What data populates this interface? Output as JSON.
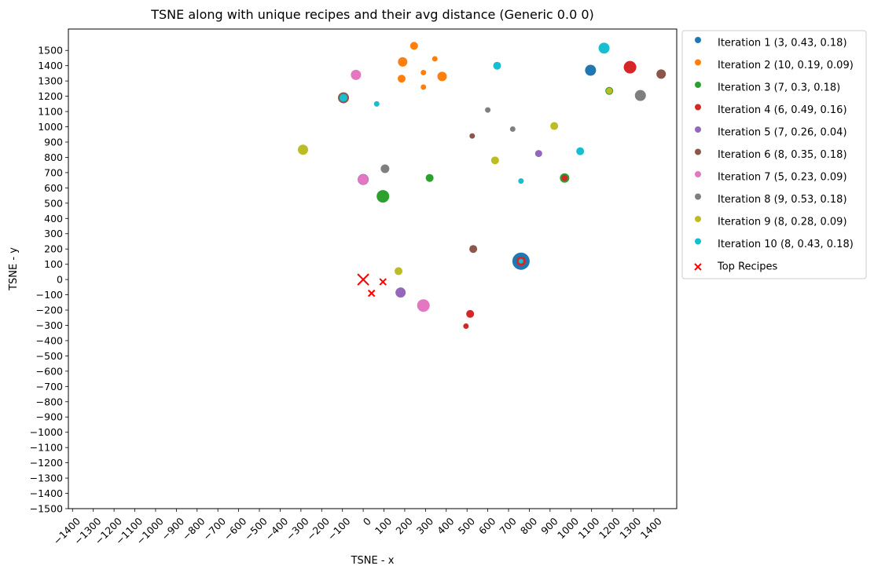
{
  "chart_data": {
    "type": "scatter",
    "title": "TSNE along with unique recipes and their avg distance (Generic 0.0 0)",
    "xlabel": "TSNE - x",
    "ylabel": "TSNE - y",
    "xlim": [
      -1420,
      1510
    ],
    "ylim": [
      -1500,
      1640
    ],
    "xticks": [
      -1400,
      -1300,
      -1200,
      -1100,
      -1000,
      -900,
      -800,
      -700,
      -600,
      -500,
      -400,
      -300,
      -200,
      -100,
      0,
      100,
      200,
      300,
      400,
      500,
      600,
      700,
      800,
      900,
      1000,
      1100,
      1200,
      1300,
      1400
    ],
    "yticks": [
      -1500,
      -1400,
      -1300,
      -1200,
      -1100,
      -1000,
      -900,
      -800,
      -700,
      -600,
      -500,
      -400,
      -300,
      -200,
      -100,
      0,
      100,
      200,
      300,
      400,
      500,
      600,
      700,
      800,
      900,
      1000,
      1100,
      1200,
      1300,
      1400,
      1500
    ],
    "grid": false,
    "legend_position": "outside-top-right",
    "series": [
      {
        "name": "Iteration 1 (3, 0.43, 0.18)",
        "color": "#1f77b4",
        "marker": "circle",
        "points": [
          {
            "x": 760,
            "y": 120,
            "size": 11
          },
          {
            "x": 1095,
            "y": 1370,
            "size": 7
          }
        ]
      },
      {
        "name": "Iteration 2 (10, 0.19, 0.09)",
        "color": "#ff7f0e",
        "marker": "circle",
        "points": [
          {
            "x": 245,
            "y": 1530,
            "size": 5
          },
          {
            "x": 190,
            "y": 1425,
            "size": 6
          },
          {
            "x": 345,
            "y": 1445,
            "size": 3.5
          },
          {
            "x": 290,
            "y": 1355,
            "size": 3.5
          },
          {
            "x": 380,
            "y": 1330,
            "size": 6
          },
          {
            "x": 185,
            "y": 1315,
            "size": 5
          },
          {
            "x": 290,
            "y": 1260,
            "size": 3.5
          }
        ]
      },
      {
        "name": "Iteration 3 (7, 0.3, 0.18)",
        "color": "#2ca02c",
        "marker": "circle",
        "points": [
          {
            "x": 95,
            "y": 545,
            "size": 8
          },
          {
            "x": 320,
            "y": 665,
            "size": 5
          },
          {
            "x": 970,
            "y": 665,
            "size": 6
          },
          {
            "x": 1185,
            "y": 1235,
            "size": 5
          }
        ]
      },
      {
        "name": "Iteration 4 (6, 0.49, 0.16)",
        "color": "#d62728",
        "marker": "circle",
        "points": [
          {
            "x": 1285,
            "y": 1390,
            "size": 8
          },
          {
            "x": 515,
            "y": -225,
            "size": 5
          },
          {
            "x": 495,
            "y": -305,
            "size": 3.5
          },
          {
            "x": 760,
            "y": 120,
            "size": 6
          },
          {
            "x": 970,
            "y": 665,
            "size": 4
          }
        ]
      },
      {
        "name": "Iteration 5 (7, 0.26, 0.04)",
        "color": "#9467bd",
        "marker": "circle",
        "points": [
          {
            "x": 180,
            "y": -85,
            "size": 6.5
          },
          {
            "x": 845,
            "y": 825,
            "size": 4.5
          },
          {
            "x": 0,
            "y": 655,
            "size": 7
          }
        ]
      },
      {
        "name": "Iteration 6 (8, 0.35, 0.18)",
        "color": "#8c564b",
        "marker": "circle",
        "points": [
          {
            "x": 1435,
            "y": 1345,
            "size": 6
          },
          {
            "x": 530,
            "y": 200,
            "size": 5
          },
          {
            "x": 525,
            "y": 940,
            "size": 3.5
          },
          {
            "x": -95,
            "y": 1190,
            "size": 7
          }
        ]
      },
      {
        "name": "Iteration 7 (5, 0.23, 0.09)",
        "color": "#e377c2",
        "marker": "circle",
        "points": [
          {
            "x": -35,
            "y": 1340,
            "size": 6.5
          },
          {
            "x": 290,
            "y": -170,
            "size": 8
          },
          {
            "x": 0,
            "y": 655,
            "size": 6.5
          }
        ]
      },
      {
        "name": "Iteration 8 (9, 0.53, 0.18)",
        "color": "#7f7f7f",
        "marker": "circle",
        "points": [
          {
            "x": 1335,
            "y": 1205,
            "size": 7
          },
          {
            "x": 600,
            "y": 1110,
            "size": 3.5
          },
          {
            "x": 720,
            "y": 985,
            "size": 3.5
          },
          {
            "x": 105,
            "y": 725,
            "size": 5.5
          }
        ]
      },
      {
        "name": "Iteration 9 (8, 0.28, 0.09)",
        "color": "#bcbd22",
        "marker": "circle",
        "points": [
          {
            "x": -290,
            "y": 850,
            "size": 6.5
          },
          {
            "x": 920,
            "y": 1005,
            "size": 5
          },
          {
            "x": 635,
            "y": 780,
            "size": 5
          },
          {
            "x": 170,
            "y": 55,
            "size": 5
          },
          {
            "x": 1185,
            "y": 1235,
            "size": 4
          }
        ]
      },
      {
        "name": "Iteration 10 (8, 0.43, 0.18)",
        "color": "#17becf",
        "marker": "circle",
        "points": [
          {
            "x": 1160,
            "y": 1515,
            "size": 7
          },
          {
            "x": 645,
            "y": 1400,
            "size": 5
          },
          {
            "x": 65,
            "y": 1150,
            "size": 3.5
          },
          {
            "x": 1045,
            "y": 840,
            "size": 5
          },
          {
            "x": 760,
            "y": 645,
            "size": 3.5
          },
          {
            "x": -95,
            "y": 1190,
            "size": 5
          },
          {
            "x": 760,
            "y": 120,
            "size": 3
          }
        ]
      },
      {
        "name": "Top Recipes",
        "color": "#ff0000",
        "marker": "x",
        "points": [
          {
            "x": 0,
            "y": 0,
            "size": 7
          },
          {
            "x": 95,
            "y": -15,
            "size": 4
          },
          {
            "x": 40,
            "y": -90,
            "size": 4
          }
        ]
      }
    ]
  }
}
